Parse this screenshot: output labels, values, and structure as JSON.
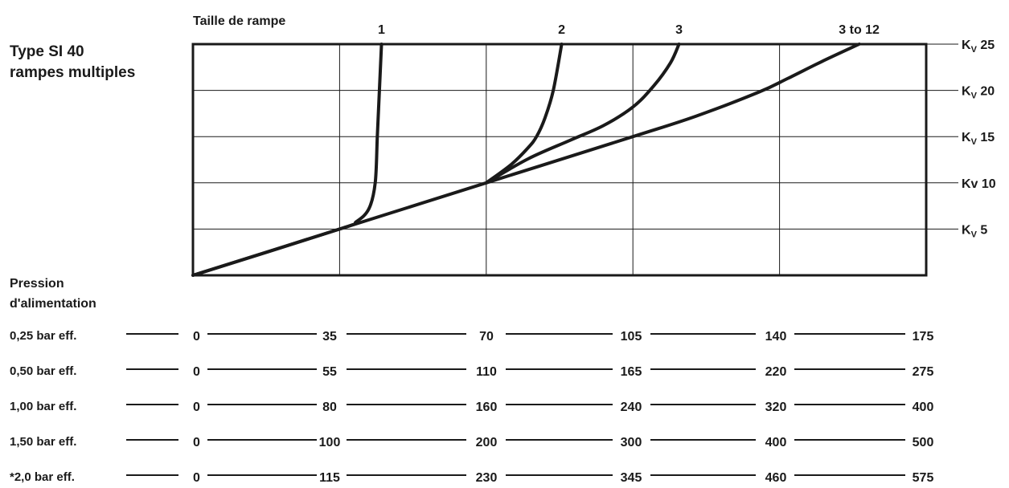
{
  "chart_data": {
    "type": "line",
    "title_lines": [
      "Type SI 40",
      "rampes multiples"
    ],
    "top_axis_title": "Taille de rampe",
    "curve_labels": [
      "1",
      "2",
      "3",
      "3 to 12"
    ],
    "xlim": [
      0,
      175
    ],
    "ylim": [
      0,
      25
    ],
    "grid": true,
    "x_grid": [
      0,
      35,
      70,
      105,
      140,
      175
    ],
    "y_grid": [
      0,
      5,
      10,
      15,
      20,
      25
    ],
    "kv_labels": [
      {
        "value": 25,
        "prefix": "K",
        "sub": "V",
        "number": "25"
      },
      {
        "value": 20,
        "prefix": "K",
        "sub": "V",
        "number": "20"
      },
      {
        "value": 15,
        "prefix": "K",
        "sub": "V",
        "number": "15"
      },
      {
        "value": 10,
        "prefix": "Kv",
        "sub": "",
        "number": "10"
      },
      {
        "value": 5,
        "prefix": "K",
        "sub": "V",
        "number": "5"
      }
    ],
    "series": [
      {
        "label": "1",
        "points": [
          [
            0,
            0
          ],
          [
            35,
            5
          ],
          [
            39,
            5.8
          ],
          [
            42,
            7.2
          ],
          [
            43.5,
            10
          ],
          [
            44,
            15
          ],
          [
            44.5,
            20
          ],
          [
            45,
            25
          ]
        ]
      },
      {
        "label": "2",
        "points": [
          [
            70,
            10
          ],
          [
            76,
            12
          ],
          [
            80,
            13.8
          ],
          [
            82,
            15
          ],
          [
            84,
            17
          ],
          [
            86,
            20
          ],
          [
            88,
            25
          ]
        ]
      },
      {
        "label": "3",
        "points": [
          [
            70,
            10
          ],
          [
            80,
            12.6
          ],
          [
            90,
            14.6
          ],
          [
            98,
            16.2
          ],
          [
            105,
            18.2
          ],
          [
            110,
            20.5
          ],
          [
            114,
            23
          ],
          [
            116,
            25
          ]
        ]
      },
      {
        "label": "3 to 12",
        "points": [
          [
            0,
            0
          ],
          [
            35,
            5
          ],
          [
            70,
            10
          ],
          [
            105,
            15
          ],
          [
            120,
            17.2
          ],
          [
            135,
            19.8
          ],
          [
            142,
            21.3
          ],
          [
            150,
            23.1
          ],
          [
            159,
            25
          ]
        ]
      }
    ],
    "pressure_title_lines": [
      "Pression",
      "d'alimentation"
    ],
    "pressure_scales": [
      {
        "label": "0,25 bar eff.",
        "ticks": [
          "0",
          "35",
          "70",
          "105",
          "140",
          "175"
        ]
      },
      {
        "label": "0,50 bar eff.",
        "ticks": [
          "0",
          "55",
          "110",
          "165",
          "220",
          "275"
        ]
      },
      {
        "label": "1,00 bar eff.",
        "ticks": [
          "0",
          "80",
          "160",
          "240",
          "320",
          "400"
        ]
      },
      {
        "label": "1,50 bar eff.",
        "ticks": [
          "0",
          "100",
          "200",
          "300",
          "400",
          "500"
        ]
      },
      {
        "label": "*2,0 bar eff.",
        "ticks": [
          "0",
          "115",
          "230",
          "345",
          "460",
          "575"
        ]
      }
    ],
    "colors": {
      "ink": "#1a1a1a",
      "background": "#ffffff"
    }
  }
}
